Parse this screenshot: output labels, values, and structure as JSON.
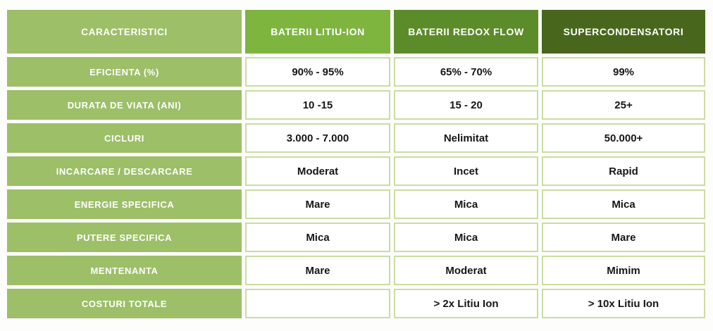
{
  "colors": {
    "label_green": "#9cbf68",
    "header_litiu_green": "#7eb53f",
    "header_redox_green": "#5c8c2a",
    "header_super_green": "#48671c",
    "cell_border_green": "#c9dda3",
    "cell_text": "#161616",
    "header_text": "#ffffff",
    "page_background": "#fdfdfc"
  },
  "chart_data": {
    "type": "table",
    "columns": [
      {
        "label": "CARACTERISTICI"
      },
      {
        "label": "BATERII LITIU-ION"
      },
      {
        "label": "BATERII REDOX FLOW"
      },
      {
        "label": "SUPERCONDENSATORI"
      }
    ],
    "rows": [
      {
        "label": "EFICIENTA (%)",
        "values": [
          "90% - 95%",
          "65% - 70%",
          "99%"
        ]
      },
      {
        "label": "DURATA DE VIATA (ANI)",
        "values": [
          "10 -15",
          "15 - 20",
          "25+"
        ]
      },
      {
        "label": "CICLURI",
        "values": [
          "3.000 - 7.000",
          "Nelimitat",
          "50.000+"
        ]
      },
      {
        "label": "INCARCARE / DESCARCARE",
        "values": [
          "Moderat",
          "Incet",
          "Rapid"
        ]
      },
      {
        "label": "ENERGIE SPECIFICA",
        "values": [
          "Mare",
          "Mica",
          "Mica"
        ]
      },
      {
        "label": "PUTERE SPECIFICA",
        "values": [
          "Mica",
          "Mica",
          "Mare"
        ]
      },
      {
        "label": "MENTENANTA",
        "values": [
          "Mare",
          "Moderat",
          "Mimim"
        ]
      },
      {
        "label": "COSTURI TOTALE",
        "values": [
          "",
          "> 2x Litiu Ion",
          "> 10x Litiu Ion"
        ]
      }
    ]
  }
}
